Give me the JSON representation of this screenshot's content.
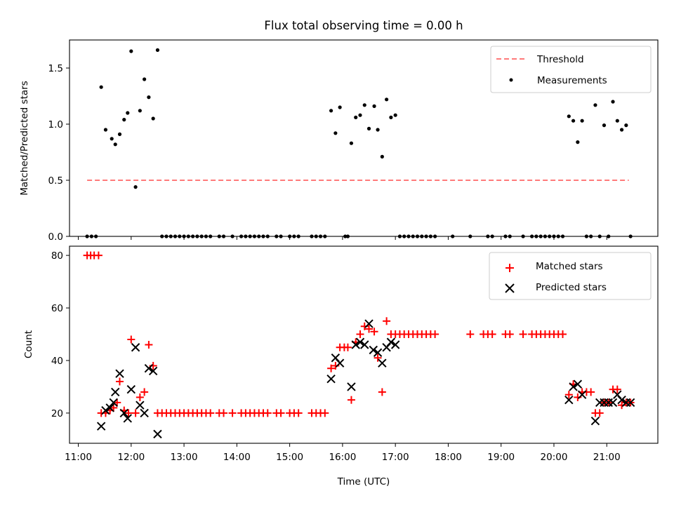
{
  "figure": {
    "title": "Flux total observing time = 0.00 h",
    "xlabel": "Time (UTC)"
  },
  "chart_data": [
    {
      "type": "scatter",
      "ylabel": "Matched/Predicted stars",
      "ylim": [
        0,
        1.75
      ],
      "yticks": [
        0.0,
        0.5,
        1.0,
        1.5
      ],
      "ytick_labels": [
        "0.0",
        "0.5",
        "1.0",
        "1.5"
      ],
      "xlim": [
        "10:50",
        "21:58"
      ],
      "grid": false,
      "legend": "upper right",
      "colors": {
        "threshold": "#ff7a7a",
        "measurements": "#000000"
      },
      "threshold": {
        "name": "Threshold",
        "value": 0.5,
        "x_start": "11:10",
        "x_end": "21:25"
      },
      "measurements": {
        "name": "Measurements",
        "points": [
          [
            "11:10",
            0
          ],
          [
            "11:15",
            0
          ],
          [
            "11:20",
            0
          ],
          [
            "11:26",
            1.33
          ],
          [
            "11:31",
            0.95
          ],
          [
            "11:38",
            0.87
          ],
          [
            "11:42",
            0.82
          ],
          [
            "11:47",
            0.91
          ],
          [
            "11:52",
            1.04
          ],
          [
            "11:56",
            1.1
          ],
          [
            "12:00",
            1.65
          ],
          [
            "12:05",
            0.44
          ],
          [
            "12:10",
            1.12
          ],
          [
            "12:15",
            1.4
          ],
          [
            "12:20",
            1.24
          ],
          [
            "12:25",
            1.05
          ],
          [
            "12:30",
            1.66
          ],
          [
            "12:35",
            0
          ],
          [
            "12:40",
            0
          ],
          [
            "12:45",
            0
          ],
          [
            "12:50",
            0
          ],
          [
            "12:55",
            0
          ],
          [
            "13:00",
            0
          ],
          [
            "13:05",
            0
          ],
          [
            "13:10",
            0
          ],
          [
            "13:15",
            0
          ],
          [
            "13:20",
            0
          ],
          [
            "13:25",
            0
          ],
          [
            "13:30",
            0
          ],
          [
            "13:40",
            0
          ],
          [
            "13:45",
            0
          ],
          [
            "13:55",
            0
          ],
          [
            "14:05",
            0
          ],
          [
            "14:10",
            0
          ],
          [
            "14:15",
            0
          ],
          [
            "14:20",
            0
          ],
          [
            "14:25",
            0
          ],
          [
            "14:30",
            0
          ],
          [
            "14:35",
            0
          ],
          [
            "14:45",
            0
          ],
          [
            "14:50",
            0
          ],
          [
            "15:00",
            0
          ],
          [
            "15:05",
            0
          ],
          [
            "15:10",
            0
          ],
          [
            "15:25",
            0
          ],
          [
            "15:30",
            0
          ],
          [
            "15:35",
            0
          ],
          [
            "15:40",
            0
          ],
          [
            "15:47",
            1.12
          ],
          [
            "15:52",
            0.92
          ],
          [
            "15:57",
            1.15
          ],
          [
            "16:03",
            0
          ],
          [
            "16:06",
            0
          ],
          [
            "16:10",
            0.83
          ],
          [
            "16:15",
            1.06
          ],
          [
            "16:20",
            1.08
          ],
          [
            "16:25",
            1.17
          ],
          [
            "16:30",
            0.96
          ],
          [
            "16:36",
            1.16
          ],
          [
            "16:40",
            0.95
          ],
          [
            "16:45",
            0.71
          ],
          [
            "16:50",
            1.22
          ],
          [
            "16:55",
            1.06
          ],
          [
            "17:00",
            1.08
          ],
          [
            "17:05",
            0
          ],
          [
            "17:10",
            0
          ],
          [
            "17:15",
            0
          ],
          [
            "17:20",
            0
          ],
          [
            "17:25",
            0
          ],
          [
            "17:30",
            0
          ],
          [
            "17:35",
            0
          ],
          [
            "17:40",
            0
          ],
          [
            "17:45",
            0
          ],
          [
            "18:05",
            0
          ],
          [
            "18:25",
            0
          ],
          [
            "18:45",
            0
          ],
          [
            "18:50",
            0
          ],
          [
            "19:05",
            0
          ],
          [
            "19:10",
            0
          ],
          [
            "19:25",
            0
          ],
          [
            "19:35",
            0
          ],
          [
            "19:40",
            0
          ],
          [
            "19:45",
            0
          ],
          [
            "19:50",
            0
          ],
          [
            "19:55",
            0
          ],
          [
            "20:00",
            0
          ],
          [
            "20:05",
            0
          ],
          [
            "20:10",
            0
          ],
          [
            "20:17",
            1.07
          ],
          [
            "20:22",
            1.03
          ],
          [
            "20:27",
            0.84
          ],
          [
            "20:32",
            1.03
          ],
          [
            "20:37",
            0
          ],
          [
            "20:42",
            0
          ],
          [
            "20:47",
            1.17
          ],
          [
            "20:52",
            0
          ],
          [
            "20:57",
            0.99
          ],
          [
            "21:02",
            0
          ],
          [
            "21:07",
            1.2
          ],
          [
            "21:12",
            1.03
          ],
          [
            "21:17",
            0.95
          ],
          [
            "21:22",
            0.99
          ],
          [
            "21:27",
            0
          ]
        ]
      }
    },
    {
      "type": "scatter",
      "ylabel": "Count",
      "ylim": [
        8.5,
        83.5
      ],
      "yticks": [
        20,
        40,
        60,
        80
      ],
      "ytick_labels": [
        "20",
        "40",
        "60",
        "80"
      ],
      "xlim": [
        "10:50",
        "21:58"
      ],
      "xticks": [
        "11:00",
        "12:00",
        "13:00",
        "14:00",
        "15:00",
        "16:00",
        "17:00",
        "18:00",
        "19:00",
        "20:00",
        "21:00"
      ],
      "xtick_labels": [
        "11:00",
        "12:00",
        "13:00",
        "14:00",
        "15:00",
        "16:00",
        "17:00",
        "18:00",
        "19:00",
        "20:00",
        "21:00"
      ],
      "grid": false,
      "legend": "upper right",
      "colors": {
        "matched": "#ff0000",
        "predicted": "#000000"
      },
      "series": [
        {
          "name": "Matched stars",
          "marker": "plus",
          "points": [
            [
              "11:10",
              80
            ],
            [
              "11:14",
              80
            ],
            [
              "11:18",
              80
            ],
            [
              "11:23",
              80
            ],
            [
              "11:26",
              20
            ],
            [
              "11:31",
              20
            ],
            [
              "11:36",
              21
            ],
            [
              "11:40",
              22
            ],
            [
              "11:44",
              24
            ],
            [
              "11:47",
              32
            ],
            [
              "11:52",
              21
            ],
            [
              "11:57",
              20
            ],
            [
              "12:00",
              48
            ],
            [
              "12:05",
              20
            ],
            [
              "12:10",
              26
            ],
            [
              "12:15",
              28
            ],
            [
              "12:20",
              46
            ],
            [
              "12:25",
              38
            ],
            [
              "12:30",
              20
            ],
            [
              "12:35",
              20
            ],
            [
              "12:40",
              20
            ],
            [
              "12:45",
              20
            ],
            [
              "12:50",
              20
            ],
            [
              "12:55",
              20
            ],
            [
              "13:00",
              20
            ],
            [
              "13:05",
              20
            ],
            [
              "13:10",
              20
            ],
            [
              "13:15",
              20
            ],
            [
              "13:20",
              20
            ],
            [
              "13:25",
              20
            ],
            [
              "13:30",
              20
            ],
            [
              "13:40",
              20
            ],
            [
              "13:45",
              20
            ],
            [
              "13:55",
              20
            ],
            [
              "14:05",
              20
            ],
            [
              "14:10",
              20
            ],
            [
              "14:15",
              20
            ],
            [
              "14:20",
              20
            ],
            [
              "14:25",
              20
            ],
            [
              "14:30",
              20
            ],
            [
              "14:35",
              20
            ],
            [
              "14:45",
              20
            ],
            [
              "14:50",
              20
            ],
            [
              "15:00",
              20
            ],
            [
              "15:05",
              20
            ],
            [
              "15:10",
              20
            ],
            [
              "15:25",
              20
            ],
            [
              "15:30",
              20
            ],
            [
              "15:35",
              20
            ],
            [
              "15:40",
              20
            ],
            [
              "15:47",
              37
            ],
            [
              "15:52",
              38
            ],
            [
              "15:57",
              45
            ],
            [
              "16:02",
              45
            ],
            [
              "16:06",
              45
            ],
            [
              "16:10",
              25
            ],
            [
              "16:15",
              47
            ],
            [
              "16:20",
              50
            ],
            [
              "16:25",
              53
            ],
            [
              "16:30",
              52
            ],
            [
              "16:36",
              51
            ],
            [
              "16:40",
              41
            ],
            [
              "16:45",
              28
            ],
            [
              "16:50",
              55
            ],
            [
              "16:55",
              50
            ],
            [
              "17:00",
              50
            ],
            [
              "17:05",
              50
            ],
            [
              "17:10",
              50
            ],
            [
              "17:15",
              50
            ],
            [
              "17:20",
              50
            ],
            [
              "17:25",
              50
            ],
            [
              "17:30",
              50
            ],
            [
              "17:35",
              50
            ],
            [
              "17:40",
              50
            ],
            [
              "17:45",
              50
            ],
            [
              "18:25",
              50
            ],
            [
              "18:40",
              50
            ],
            [
              "18:45",
              50
            ],
            [
              "18:50",
              50
            ],
            [
              "19:05",
              50
            ],
            [
              "19:10",
              50
            ],
            [
              "19:25",
              50
            ],
            [
              "19:35",
              50
            ],
            [
              "19:40",
              50
            ],
            [
              "19:45",
              50
            ],
            [
              "19:50",
              50
            ],
            [
              "19:55",
              50
            ],
            [
              "20:00",
              50
            ],
            [
              "20:05",
              50
            ],
            [
              "20:10",
              50
            ],
            [
              "20:17",
              27
            ],
            [
              "20:22",
              31
            ],
            [
              "20:27",
              26
            ],
            [
              "20:32",
              28
            ],
            [
              "20:37",
              28
            ],
            [
              "20:42",
              28
            ],
            [
              "20:47",
              20
            ],
            [
              "20:52",
              20
            ],
            [
              "20:57",
              24
            ],
            [
              "21:02",
              24
            ],
            [
              "21:07",
              29
            ],
            [
              "21:12",
              29
            ],
            [
              "21:17",
              23
            ],
            [
              "21:22",
              24
            ],
            [
              "21:27",
              24
            ]
          ]
        },
        {
          "name": "Predicted stars",
          "marker": "x",
          "points": [
            [
              "11:26",
              15
            ],
            [
              "11:31",
              21
            ],
            [
              "11:36",
              22
            ],
            [
              "11:40",
              24
            ],
            [
              "11:42",
              28
            ],
            [
              "11:47",
              35
            ],
            [
              "11:52",
              20
            ],
            [
              "11:56",
              18
            ],
            [
              "12:00",
              29
            ],
            [
              "12:05",
              45
            ],
            [
              "12:10",
              23
            ],
            [
              "12:15",
              20
            ],
            [
              "12:20",
              37
            ],
            [
              "12:25",
              36
            ],
            [
              "12:30",
              12
            ],
            [
              "15:47",
              33
            ],
            [
              "15:52",
              41
            ],
            [
              "15:57",
              39
            ],
            [
              "16:10",
              30
            ],
            [
              "16:15",
              46
            ],
            [
              "16:20",
              47
            ],
            [
              "16:25",
              46
            ],
            [
              "16:30",
              54
            ],
            [
              "16:35",
              44
            ],
            [
              "16:40",
              43
            ],
            [
              "16:45",
              39
            ],
            [
              "16:50",
              45
            ],
            [
              "16:55",
              47
            ],
            [
              "17:00",
              46
            ],
            [
              "20:17",
              25
            ],
            [
              "20:22",
              30
            ],
            [
              "20:27",
              31
            ],
            [
              "20:32",
              27
            ],
            [
              "20:47",
              17
            ],
            [
              "20:52",
              24
            ],
            [
              "20:57",
              24
            ],
            [
              "21:02",
              24
            ],
            [
              "21:07",
              24
            ],
            [
              "21:12",
              27
            ],
            [
              "21:17",
              25
            ],
            [
              "21:22",
              24
            ],
            [
              "21:27",
              24
            ]
          ]
        }
      ]
    }
  ]
}
